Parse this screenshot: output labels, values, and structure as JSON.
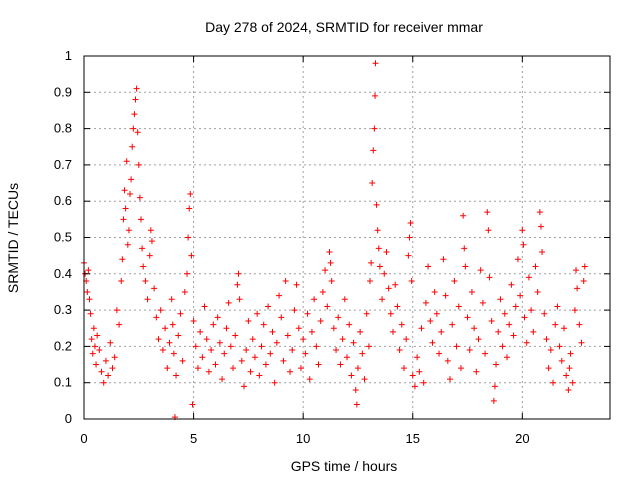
{
  "chart_data": {
    "type": "scatter",
    "title": "Day 278 of 2024, SRMTID for receiver mmar",
    "xlabel": "GPS time / hours",
    "ylabel": "SRMTID / TECUs",
    "xlim": [
      0,
      24
    ],
    "ylim": [
      0,
      1
    ],
    "xticks": [
      0,
      5,
      10,
      15,
      20
    ],
    "yticks": [
      0,
      0.1,
      0.2,
      0.3,
      0.4,
      0.5,
      0.6,
      0.7,
      0.8,
      0.9,
      1
    ],
    "xtick_labels": [
      "0",
      "5",
      "10",
      "15",
      "20"
    ],
    "ytick_labels": [
      "0",
      "0.1",
      "0.2",
      "0.3",
      "0.4",
      "0.5",
      "0.6",
      "0.7",
      "0.8",
      "0.9",
      "1"
    ],
    "grid": true,
    "marker": "+",
    "color": "#ff0000",
    "series": [
      {
        "name": "SRMTID",
        "points": [
          [
            0.0,
            0.43
          ],
          [
            0.05,
            0.4
          ],
          [
            0.1,
            0.38
          ],
          [
            0.15,
            0.35
          ],
          [
            0.2,
            0.41
          ],
          [
            0.25,
            0.33
          ],
          [
            0.3,
            0.29
          ],
          [
            0.35,
            0.22
          ],
          [
            0.4,
            0.18
          ],
          [
            0.45,
            0.25
          ],
          [
            0.5,
            0.2
          ],
          [
            0.55,
            0.15
          ],
          [
            0.6,
            0.23
          ],
          [
            0.7,
            0.19
          ],
          [
            0.8,
            0.13
          ],
          [
            0.9,
            0.1
          ],
          [
            1.0,
            0.16
          ],
          [
            1.1,
            0.12
          ],
          [
            1.2,
            0.21
          ],
          [
            1.3,
            0.14
          ],
          [
            1.4,
            0.17
          ],
          [
            1.5,
            0.3
          ],
          [
            1.6,
            0.26
          ],
          [
            1.7,
            0.38
          ],
          [
            1.75,
            0.44
          ],
          [
            1.8,
            0.55
          ],
          [
            1.85,
            0.63
          ],
          [
            1.9,
            0.58
          ],
          [
            1.95,
            0.71
          ],
          [
            2.0,
            0.48
          ],
          [
            2.05,
            0.52
          ],
          [
            2.1,
            0.62
          ],
          [
            2.15,
            0.66
          ],
          [
            2.2,
            0.75
          ],
          [
            2.25,
            0.8
          ],
          [
            2.3,
            0.84
          ],
          [
            2.35,
            0.88
          ],
          [
            2.4,
            0.91
          ],
          [
            2.45,
            0.79
          ],
          [
            2.5,
            0.7
          ],
          [
            2.55,
            0.61
          ],
          [
            2.6,
            0.55
          ],
          [
            2.65,
            0.47
          ],
          [
            2.7,
            0.42
          ],
          [
            2.8,
            0.38
          ],
          [
            2.9,
            0.33
          ],
          [
            3.0,
            0.45
          ],
          [
            3.05,
            0.52
          ],
          [
            3.1,
            0.49
          ],
          [
            3.2,
            0.36
          ],
          [
            3.3,
            0.28
          ],
          [
            3.4,
            0.22
          ],
          [
            3.5,
            0.3
          ],
          [
            3.6,
            0.19
          ],
          [
            3.7,
            0.25
          ],
          [
            3.8,
            0.14
          ],
          [
            3.9,
            0.21
          ],
          [
            4.0,
            0.33
          ],
          [
            4.05,
            0.26
          ],
          [
            4.1,
            0.18
          ],
          [
            4.15,
            0.005
          ],
          [
            4.2,
            0.12
          ],
          [
            4.3,
            0.23
          ],
          [
            4.4,
            0.29
          ],
          [
            4.5,
            0.16
          ],
          [
            4.6,
            0.35
          ],
          [
            4.7,
            0.4
          ],
          [
            4.75,
            0.5
          ],
          [
            4.8,
            0.58
          ],
          [
            4.85,
            0.62
          ],
          [
            4.9,
            0.45
          ],
          [
            4.95,
            0.04
          ],
          [
            5.0,
            0.27
          ],
          [
            5.1,
            0.2
          ],
          [
            5.2,
            0.14
          ],
          [
            5.3,
            0.24
          ],
          [
            5.4,
            0.17
          ],
          [
            5.5,
            0.31
          ],
          [
            5.6,
            0.22
          ],
          [
            5.7,
            0.13
          ],
          [
            5.8,
            0.19
          ],
          [
            5.9,
            0.26
          ],
          [
            6.0,
            0.15
          ],
          [
            6.1,
            0.28
          ],
          [
            6.2,
            0.21
          ],
          [
            6.3,
            0.11
          ],
          [
            6.4,
            0.18
          ],
          [
            6.5,
            0.25
          ],
          [
            6.6,
            0.32
          ],
          [
            6.7,
            0.2
          ],
          [
            6.8,
            0.14
          ],
          [
            6.9,
            0.23
          ],
          [
            7.0,
            0.37
          ],
          [
            7.05,
            0.4
          ],
          [
            7.1,
            0.33
          ],
          [
            7.2,
            0.16
          ],
          [
            7.3,
            0.09
          ],
          [
            7.4,
            0.19
          ],
          [
            7.5,
            0.27
          ],
          [
            7.6,
            0.13
          ],
          [
            7.7,
            0.22
          ],
          [
            7.8,
            0.17
          ],
          [
            7.9,
            0.29
          ],
          [
            8.0,
            0.12
          ],
          [
            8.1,
            0.2
          ],
          [
            8.2,
            0.26
          ],
          [
            8.3,
            0.15
          ],
          [
            8.4,
            0.31
          ],
          [
            8.5,
            0.18
          ],
          [
            8.6,
            0.24
          ],
          [
            8.7,
            0.1
          ],
          [
            8.8,
            0.21
          ],
          [
            8.9,
            0.34
          ],
          [
            9.0,
            0.28
          ],
          [
            9.1,
            0.16
          ],
          [
            9.2,
            0.38
          ],
          [
            9.3,
            0.23
          ],
          [
            9.4,
            0.13
          ],
          [
            9.5,
            0.19
          ],
          [
            9.6,
            0.3
          ],
          [
            9.7,
            0.37
          ],
          [
            9.8,
            0.25
          ],
          [
            9.9,
            0.14
          ],
          [
            10.0,
            0.22
          ],
          [
            10.1,
            0.18
          ],
          [
            10.2,
            0.29
          ],
          [
            10.3,
            0.11
          ],
          [
            10.4,
            0.24
          ],
          [
            10.5,
            0.33
          ],
          [
            10.6,
            0.2
          ],
          [
            10.7,
            0.15
          ],
          [
            10.8,
            0.27
          ],
          [
            10.9,
            0.35
          ],
          [
            11.0,
            0.41
          ],
          [
            11.1,
            0.31
          ],
          [
            11.2,
            0.46
          ],
          [
            11.25,
            0.43
          ],
          [
            11.3,
            0.38
          ],
          [
            11.4,
            0.25
          ],
          [
            11.5,
            0.19
          ],
          [
            11.6,
            0.28
          ],
          [
            11.7,
            0.15
          ],
          [
            11.8,
            0.22
          ],
          [
            11.9,
            0.33
          ],
          [
            12.0,
            0.17
          ],
          [
            12.1,
            0.26
          ],
          [
            12.2,
            0.12
          ],
          [
            12.3,
            0.21
          ],
          [
            12.4,
            0.08
          ],
          [
            12.45,
            0.04
          ],
          [
            12.5,
            0.14
          ],
          [
            12.6,
            0.24
          ],
          [
            12.7,
            0.18
          ],
          [
            12.8,
            0.11
          ],
          [
            12.9,
            0.29
          ],
          [
            13.0,
            0.2
          ],
          [
            13.05,
            0.38
          ],
          [
            13.1,
            0.43
          ],
          [
            13.15,
            0.65
          ],
          [
            13.2,
            0.74
          ],
          [
            13.25,
            0.8
          ],
          [
            13.28,
            0.89
          ],
          [
            13.3,
            0.98
          ],
          [
            13.35,
            0.59
          ],
          [
            13.4,
            0.52
          ],
          [
            13.45,
            0.47
          ],
          [
            13.5,
            0.42
          ],
          [
            13.6,
            0.33
          ],
          [
            13.7,
            0.4
          ],
          [
            13.8,
            0.46
          ],
          [
            13.9,
            0.36
          ],
          [
            14.0,
            0.29
          ],
          [
            14.1,
            0.24
          ],
          [
            14.2,
            0.37
          ],
          [
            14.3,
            0.31
          ],
          [
            14.4,
            0.19
          ],
          [
            14.5,
            0.26
          ],
          [
            14.6,
            0.14
          ],
          [
            14.7,
            0.22
          ],
          [
            14.8,
            0.45
          ],
          [
            14.85,
            0.5
          ],
          [
            14.9,
            0.54
          ],
          [
            14.95,
            0.38
          ],
          [
            15.0,
            0.12
          ],
          [
            15.1,
            0.09
          ],
          [
            15.2,
            0.17
          ],
          [
            15.3,
            0.13
          ],
          [
            15.4,
            0.25
          ],
          [
            15.5,
            0.1
          ],
          [
            15.6,
            0.32
          ],
          [
            15.7,
            0.42
          ],
          [
            15.8,
            0.27
          ],
          [
            15.9,
            0.21
          ],
          [
            16.0,
            0.35
          ],
          [
            16.1,
            0.29
          ],
          [
            16.2,
            0.18
          ],
          [
            16.3,
            0.24
          ],
          [
            16.4,
            0.44
          ],
          [
            16.5,
            0.34
          ],
          [
            16.6,
            0.16
          ],
          [
            16.7,
            0.11
          ],
          [
            16.8,
            0.26
          ],
          [
            16.9,
            0.38
          ],
          [
            17.0,
            0.2
          ],
          [
            17.1,
            0.31
          ],
          [
            17.2,
            0.14
          ],
          [
            17.3,
            0.56
          ],
          [
            17.35,
            0.47
          ],
          [
            17.4,
            0.42
          ],
          [
            17.5,
            0.28
          ],
          [
            17.6,
            0.19
          ],
          [
            17.7,
            0.35
          ],
          [
            17.8,
            0.25
          ],
          [
            17.9,
            0.13
          ],
          [
            18.0,
            0.22
          ],
          [
            18.1,
            0.41
          ],
          [
            18.2,
            0.32
          ],
          [
            18.3,
            0.18
          ],
          [
            18.4,
            0.57
          ],
          [
            18.45,
            0.52
          ],
          [
            18.5,
            0.39
          ],
          [
            18.6,
            0.27
          ],
          [
            18.7,
            0.05
          ],
          [
            18.75,
            0.09
          ],
          [
            18.8,
            0.15
          ],
          [
            18.9,
            0.24
          ],
          [
            19.0,
            0.33
          ],
          [
            19.1,
            0.2
          ],
          [
            19.2,
            0.29
          ],
          [
            19.3,
            0.17
          ],
          [
            19.4,
            0.26
          ],
          [
            19.5,
            0.37
          ],
          [
            19.6,
            0.23
          ],
          [
            19.7,
            0.31
          ],
          [
            19.8,
            0.44
          ],
          [
            19.9,
            0.34
          ],
          [
            20.0,
            0.52
          ],
          [
            20.05,
            0.48
          ],
          [
            20.1,
            0.28
          ],
          [
            20.2,
            0.21
          ],
          [
            20.3,
            0.39
          ],
          [
            20.4,
            0.3
          ],
          [
            20.5,
            0.24
          ],
          [
            20.6,
            0.42
          ],
          [
            20.7,
            0.35
          ],
          [
            20.8,
            0.57
          ],
          [
            20.85,
            0.53
          ],
          [
            20.9,
            0.46
          ],
          [
            21.0,
            0.29
          ],
          [
            21.1,
            0.22
          ],
          [
            21.2,
            0.14
          ],
          [
            21.3,
            0.19
          ],
          [
            21.4,
            0.1
          ],
          [
            21.5,
            0.26
          ],
          [
            21.6,
            0.31
          ],
          [
            21.7,
            0.2
          ],
          [
            21.8,
            0.16
          ],
          [
            21.9,
            0.25
          ],
          [
            22.0,
            0.12
          ],
          [
            22.1,
            0.08
          ],
          [
            22.15,
            0.14
          ],
          [
            22.2,
            0.18
          ],
          [
            22.3,
            0.1
          ],
          [
            22.4,
            0.3
          ],
          [
            22.45,
            0.41
          ],
          [
            22.5,
            0.36
          ],
          [
            22.6,
            0.26
          ],
          [
            22.7,
            0.21
          ],
          [
            22.8,
            0.38
          ],
          [
            22.85,
            0.42
          ]
        ]
      }
    ]
  }
}
